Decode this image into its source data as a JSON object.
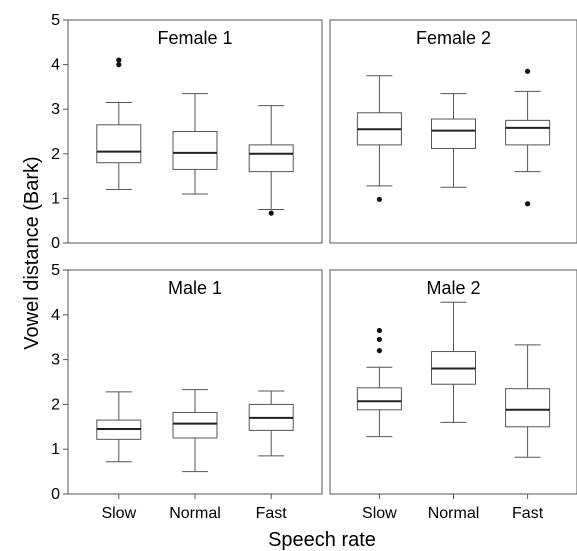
{
  "chart_data": {
    "type": "box",
    "xlabel": "Speech rate",
    "ylabel": "Vowel distance (Bark)",
    "ylim": [
      0,
      5
    ],
    "yticks": [
      "0",
      "1",
      "2",
      "3",
      "4",
      "5"
    ],
    "categories": [
      "Slow",
      "Normal",
      "Fast"
    ],
    "grid": false,
    "panels": [
      {
        "title": "Female 1",
        "boxes": [
          {
            "category": "Slow",
            "min": 1.2,
            "q1": 1.8,
            "median": 2.05,
            "q3": 2.65,
            "max": 3.15,
            "outliers": [
              4.0,
              4.1
            ]
          },
          {
            "category": "Normal",
            "min": 1.1,
            "q1": 1.65,
            "median": 2.02,
            "q3": 2.5,
            "max": 3.35,
            "outliers": []
          },
          {
            "category": "Fast",
            "min": 0.75,
            "q1": 1.6,
            "median": 2.0,
            "q3": 2.2,
            "max": 3.08,
            "outliers": [
              0.67
            ]
          }
        ]
      },
      {
        "title": "Female 2",
        "boxes": [
          {
            "category": "Slow",
            "min": 1.28,
            "q1": 2.2,
            "median": 2.55,
            "q3": 2.92,
            "max": 3.75,
            "outliers": [
              0.98
            ]
          },
          {
            "category": "Normal",
            "min": 1.25,
            "q1": 2.12,
            "median": 2.52,
            "q3": 2.78,
            "max": 3.35,
            "outliers": []
          },
          {
            "category": "Fast",
            "min": 1.6,
            "q1": 2.2,
            "median": 2.58,
            "q3": 2.75,
            "max": 3.4,
            "outliers": [
              3.85,
              0.88
            ]
          }
        ]
      },
      {
        "title": "Male 1",
        "boxes": [
          {
            "category": "Slow",
            "min": 0.72,
            "q1": 1.22,
            "median": 1.45,
            "q3": 1.65,
            "max": 2.28,
            "outliers": []
          },
          {
            "category": "Normal",
            "min": 0.5,
            "q1": 1.25,
            "median": 1.57,
            "q3": 1.82,
            "max": 2.33,
            "outliers": []
          },
          {
            "category": "Fast",
            "min": 0.85,
            "q1": 1.42,
            "median": 1.7,
            "q3": 2.0,
            "max": 2.3,
            "outliers": []
          }
        ]
      },
      {
        "title": "Male 2",
        "boxes": [
          {
            "category": "Slow",
            "min": 1.28,
            "q1": 1.88,
            "median": 2.07,
            "q3": 2.37,
            "max": 2.83,
            "outliers": [
              3.2,
              3.45,
              3.65
            ]
          },
          {
            "category": "Normal",
            "min": 1.6,
            "q1": 2.45,
            "median": 2.8,
            "q3": 3.18,
            "max": 4.28,
            "outliers": []
          },
          {
            "category": "Fast",
            "min": 0.82,
            "q1": 1.5,
            "median": 1.88,
            "q3": 2.35,
            "max": 3.33,
            "outliers": []
          }
        ]
      }
    ]
  }
}
